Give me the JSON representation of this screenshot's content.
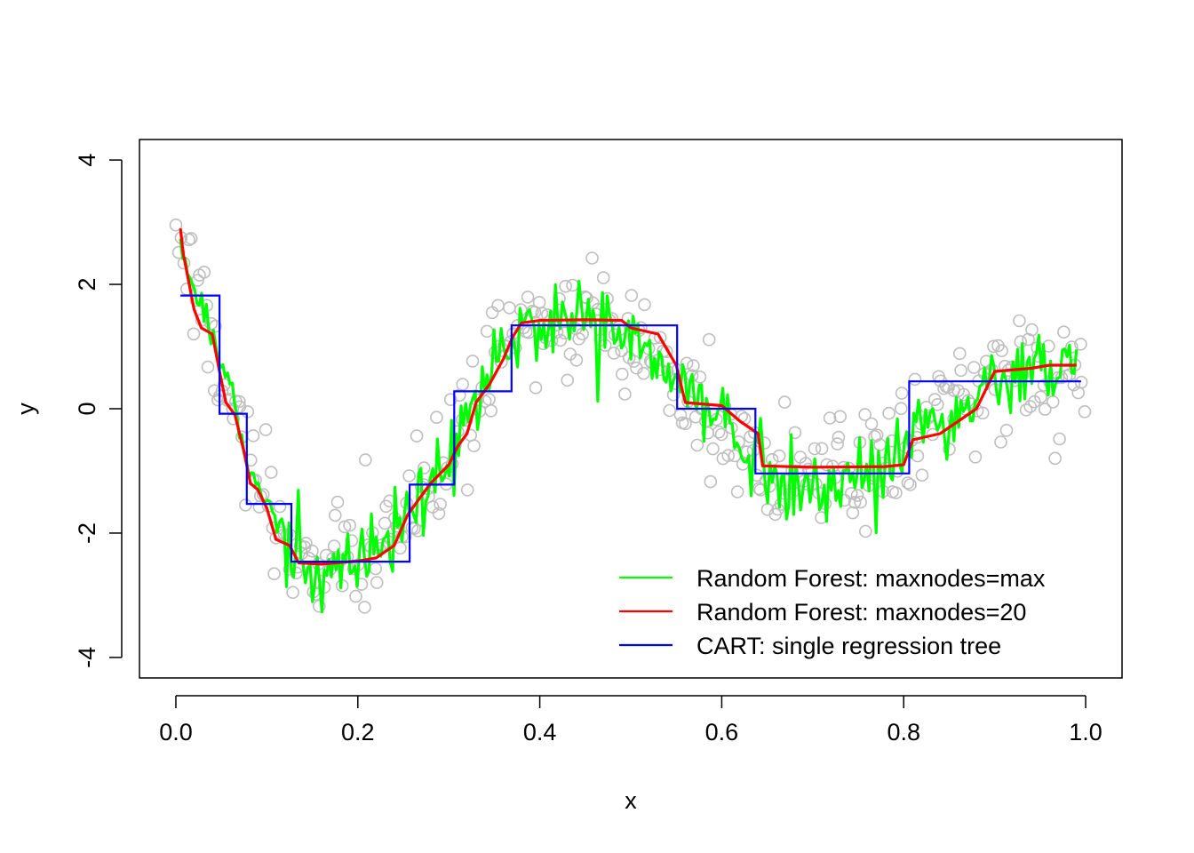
{
  "chart_data": {
    "type": "scatter",
    "xlabel": "x",
    "ylabel": "y",
    "xlim": [
      -0.04,
      1.04
    ],
    "ylim": [
      -4.33,
      4.33
    ],
    "x_ticks": [
      0.0,
      0.2,
      0.4,
      0.6,
      0.8,
      1.0
    ],
    "x_tick_labels": [
      "0.0",
      "0.2",
      "0.4",
      "0.6",
      "0.8",
      "1.0"
    ],
    "y_ticks": [
      -4,
      -2,
      0,
      2,
      4
    ],
    "y_tick_labels": [
      "-4",
      "-2",
      "0",
      "2",
      "4"
    ],
    "grid": false,
    "legend_position": "bottom-right",
    "legend": [
      {
        "label": "Random Forest: maxnodes=max",
        "color": "#00ff00"
      },
      {
        "label": "Random Forest: maxnodes=20",
        "color": "#ff0000"
      },
      {
        "label": "CART: single regression tree",
        "color": "#0000ff"
      }
    ],
    "points_color": "#bebebe",
    "points_approx_count": 400,
    "points_trend": [
      [
        0.0,
        3.0
      ],
      [
        0.02,
        2.1
      ],
      [
        0.04,
        1.1
      ],
      [
        0.06,
        0.3
      ],
      [
        0.08,
        -0.9
      ],
      [
        0.1,
        -1.7
      ],
      [
        0.12,
        -2.25
      ],
      [
        0.15,
        -2.5
      ],
      [
        0.18,
        -2.5
      ],
      [
        0.21,
        -2.3
      ],
      [
        0.24,
        -2.0
      ],
      [
        0.27,
        -1.45
      ],
      [
        0.3,
        -0.75
      ],
      [
        0.33,
        0.15
      ],
      [
        0.36,
        0.95
      ],
      [
        0.39,
        1.4
      ],
      [
        0.42,
        1.55
      ],
      [
        0.46,
        1.5
      ],
      [
        0.5,
        1.2
      ],
      [
        0.54,
        0.6
      ],
      [
        0.58,
        0.0
      ],
      [
        0.62,
        -0.55
      ],
      [
        0.66,
        -0.95
      ],
      [
        0.7,
        -1.15
      ],
      [
        0.74,
        -1.05
      ],
      [
        0.78,
        -0.7
      ],
      [
        0.82,
        -0.2
      ],
      [
        0.86,
        0.2
      ],
      [
        0.9,
        0.45
      ],
      [
        0.94,
        0.6
      ],
      [
        0.98,
        0.6
      ],
      [
        1.0,
        0.55
      ]
    ],
    "points_noise_sd": 0.45,
    "series": [
      {
        "name": "CART: single regression tree",
        "color": "#0000ff",
        "step": true,
        "breaks": [
          0.0,
          0.048,
          0.078,
          0.127,
          0.257,
          0.306,
          0.369,
          0.551,
          0.637,
          0.806,
          1.0
        ],
        "levels": [
          1.82,
          -0.08,
          -1.53,
          -2.46,
          -1.22,
          0.28,
          1.34,
          0.0,
          -1.04,
          0.44
        ]
      },
      {
        "name": "Random Forest: maxnodes=20",
        "color": "#ff0000",
        "x": [
          0.0,
          0.008,
          0.012,
          0.02,
          0.028,
          0.04,
          0.048,
          0.055,
          0.065,
          0.075,
          0.082,
          0.09,
          0.1,
          0.11,
          0.125,
          0.135,
          0.16,
          0.2,
          0.22,
          0.24,
          0.255,
          0.265,
          0.28,
          0.3,
          0.31,
          0.32,
          0.33,
          0.345,
          0.36,
          0.37,
          0.38,
          0.4,
          0.45,
          0.49,
          0.5,
          0.53,
          0.55,
          0.56,
          0.6,
          0.62,
          0.64,
          0.645,
          0.7,
          0.78,
          0.8,
          0.81,
          0.84,
          0.86,
          0.88,
          0.89,
          0.9,
          0.94,
          0.96,
          0.99
        ],
        "y": [
          2.9,
          2.5,
          2.2,
          1.6,
          1.3,
          1.2,
          0.6,
          0.1,
          -0.1,
          -0.7,
          -1.2,
          -1.3,
          -1.6,
          -2.1,
          -2.2,
          -2.48,
          -2.5,
          -2.45,
          -2.4,
          -2.2,
          -1.7,
          -1.5,
          -1.2,
          -0.9,
          -0.6,
          -0.4,
          0.1,
          0.4,
          0.8,
          1.15,
          1.38,
          1.42,
          1.43,
          1.42,
          1.3,
          1.2,
          0.7,
          0.1,
          0.05,
          -0.2,
          -0.4,
          -0.92,
          -0.94,
          -0.93,
          -0.9,
          -0.5,
          -0.4,
          -0.2,
          0.0,
          0.3,
          0.6,
          0.65,
          0.7,
          0.7
        ]
      },
      {
        "name": "Random Forest: maxnodes=max",
        "color": "#00ff00",
        "trend_x": [
          0.0,
          0.02,
          0.04,
          0.06,
          0.08,
          0.1,
          0.12,
          0.15,
          0.18,
          0.21,
          0.24,
          0.27,
          0.3,
          0.33,
          0.36,
          0.39,
          0.42,
          0.46,
          0.5,
          0.54,
          0.58,
          0.62,
          0.66,
          0.7,
          0.74,
          0.78,
          0.82,
          0.86,
          0.9,
          0.94,
          0.98,
          1.0
        ],
        "trend_y": [
          2.9,
          1.9,
          1.2,
          0.3,
          -1.0,
          -1.5,
          -2.1,
          -2.55,
          -2.6,
          -2.4,
          -2.0,
          -1.5,
          -0.8,
          0.1,
          0.9,
          1.35,
          1.5,
          1.45,
          1.1,
          0.6,
          0.05,
          -0.5,
          -1.05,
          -1.3,
          -1.2,
          -0.9,
          -0.2,
          -0.1,
          0.3,
          0.7,
          0.6,
          0.6
        ],
        "noise_sd": 0.32
      }
    ]
  }
}
